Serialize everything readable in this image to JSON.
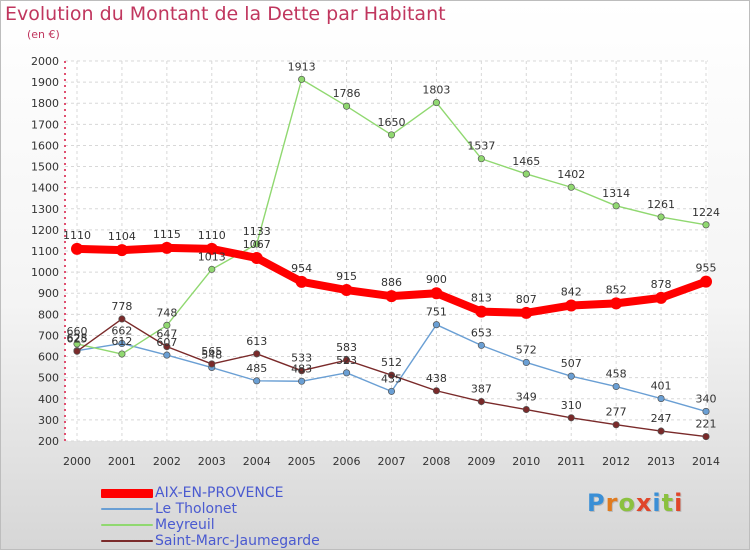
{
  "header": {
    "title": "Evolution du Montant de la Dette par Habitant",
    "subtitle": "(en €)"
  },
  "logo": {
    "text": "Proxiti",
    "letter_colors": [
      "#3a8fd6",
      "#e07b1f",
      "#8bc13f",
      "#e0462a",
      "#3a8fd6",
      "#8bc13f",
      "#e0462a"
    ]
  },
  "chart_data": {
    "type": "line",
    "title": "Evolution du Montant de la Dette par Habitant",
    "ylabel": "(en €)",
    "xlabel": "",
    "x": [
      "2000",
      "2001",
      "2002",
      "2003",
      "2004",
      "2005",
      "2006",
      "2007",
      "2008",
      "2009",
      "2010",
      "2011",
      "2012",
      "2013",
      "2014"
    ],
    "ylim": [
      200,
      2000
    ],
    "yticks": [
      200,
      300,
      400,
      500,
      600,
      700,
      800,
      900,
      1000,
      1100,
      1200,
      1300,
      1400,
      1500,
      1600,
      1700,
      1800,
      1900,
      2000
    ],
    "grid": true,
    "legend_position": "bottom-left",
    "series": [
      {
        "name": "AIX-EN-PROVENCE",
        "color": "#ff0000",
        "width": 8,
        "marker": 6,
        "values": [
          1110,
          1104,
          1115,
          1110,
          1067,
          954,
          915,
          886,
          900,
          813,
          807,
          842,
          852,
          878,
          955
        ]
      },
      {
        "name": "Le Tholonet",
        "color": "#6a9fd4",
        "width": 1.4,
        "marker": 3.2,
        "values": [
          628,
          662,
          607,
          548,
          485,
          483,
          523,
          435,
          751,
          653,
          572,
          507,
          458,
          401,
          340
        ]
      },
      {
        "name": "Meyreuil",
        "color": "#90d870",
        "width": 1.4,
        "marker": 3.2,
        "values": [
          660,
          612,
          748,
          1013,
          1133,
          1913,
          1786,
          1650,
          1803,
          1537,
          1465,
          1402,
          1314,
          1261,
          1224
        ]
      },
      {
        "name": "Saint-Marc-Jaumegarde",
        "color": "#7a2a2a",
        "width": 1.4,
        "marker": 3.2,
        "values": [
          625,
          778,
          647,
          565,
          613,
          533,
          583,
          512,
          438,
          387,
          349,
          310,
          277,
          247,
          221
        ]
      }
    ],
    "labels": {
      "AIX-EN-PROVENCE": [
        "1110",
        "1104",
        "1115",
        "1110",
        "1067",
        "954",
        "915",
        "886",
        "900",
        "813",
        "807",
        "842",
        "852",
        "878",
        "955"
      ],
      "Le Tholonet": [
        "628",
        "662",
        "607",
        "548",
        "485",
        "483",
        "523",
        "435",
        "751",
        "653",
        "572",
        "507",
        "458",
        "401",
        "340"
      ],
      "Meyreuil": [
        "660",
        "612",
        "748",
        "1013",
        "1133",
        "1913",
        "1786",
        "1650",
        "1803",
        "1537",
        "1465",
        "1402",
        "1314",
        "1261",
        "1224"
      ],
      "Saint-Marc-Jaumegarde": [
        "625",
        "778",
        "647",
        "565",
        "613",
        "533",
        "583",
        "512",
        "438",
        "387",
        "349",
        "310",
        "277",
        "247",
        "221"
      ]
    }
  }
}
